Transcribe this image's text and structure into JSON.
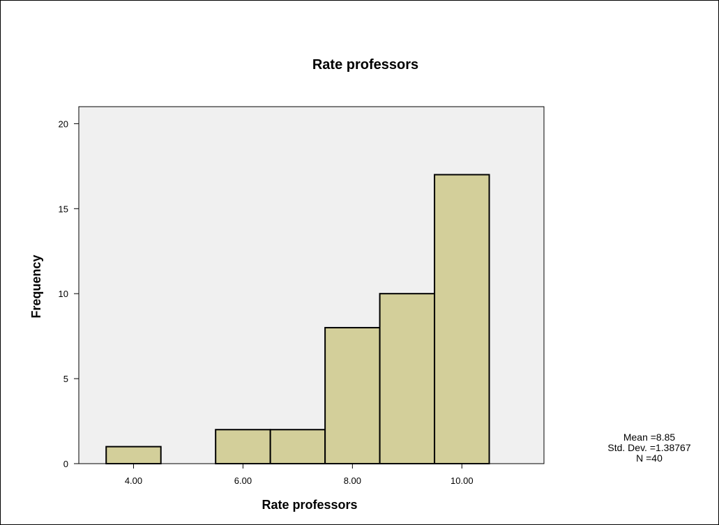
{
  "chart_data": {
    "type": "bar",
    "title": "Rate professors",
    "xlabel": "Rate professors",
    "ylabel": "Frequency",
    "bins": [
      4,
      5,
      6,
      7,
      8,
      9,
      10
    ],
    "values": [
      1,
      0,
      2,
      2,
      8,
      10,
      17
    ],
    "xlim": [
      3,
      11.5
    ],
    "ylim": [
      0,
      21
    ],
    "x_ticks": [
      4,
      6,
      8,
      10
    ],
    "x_tick_labels": [
      "4.00",
      "6.00",
      "8.00",
      "10.00"
    ],
    "y_ticks": [
      0,
      5,
      10,
      15,
      20
    ],
    "y_tick_labels": [
      "0",
      "5",
      "10",
      "15",
      "20"
    ],
    "grid": false,
    "bar_color": "#d3cf9a",
    "plot_background": "#f0f0f0",
    "stats": {
      "mean": "Mean =8.85",
      "std_dev": "Std. Dev. =1.38767",
      "n": "N =40"
    }
  }
}
